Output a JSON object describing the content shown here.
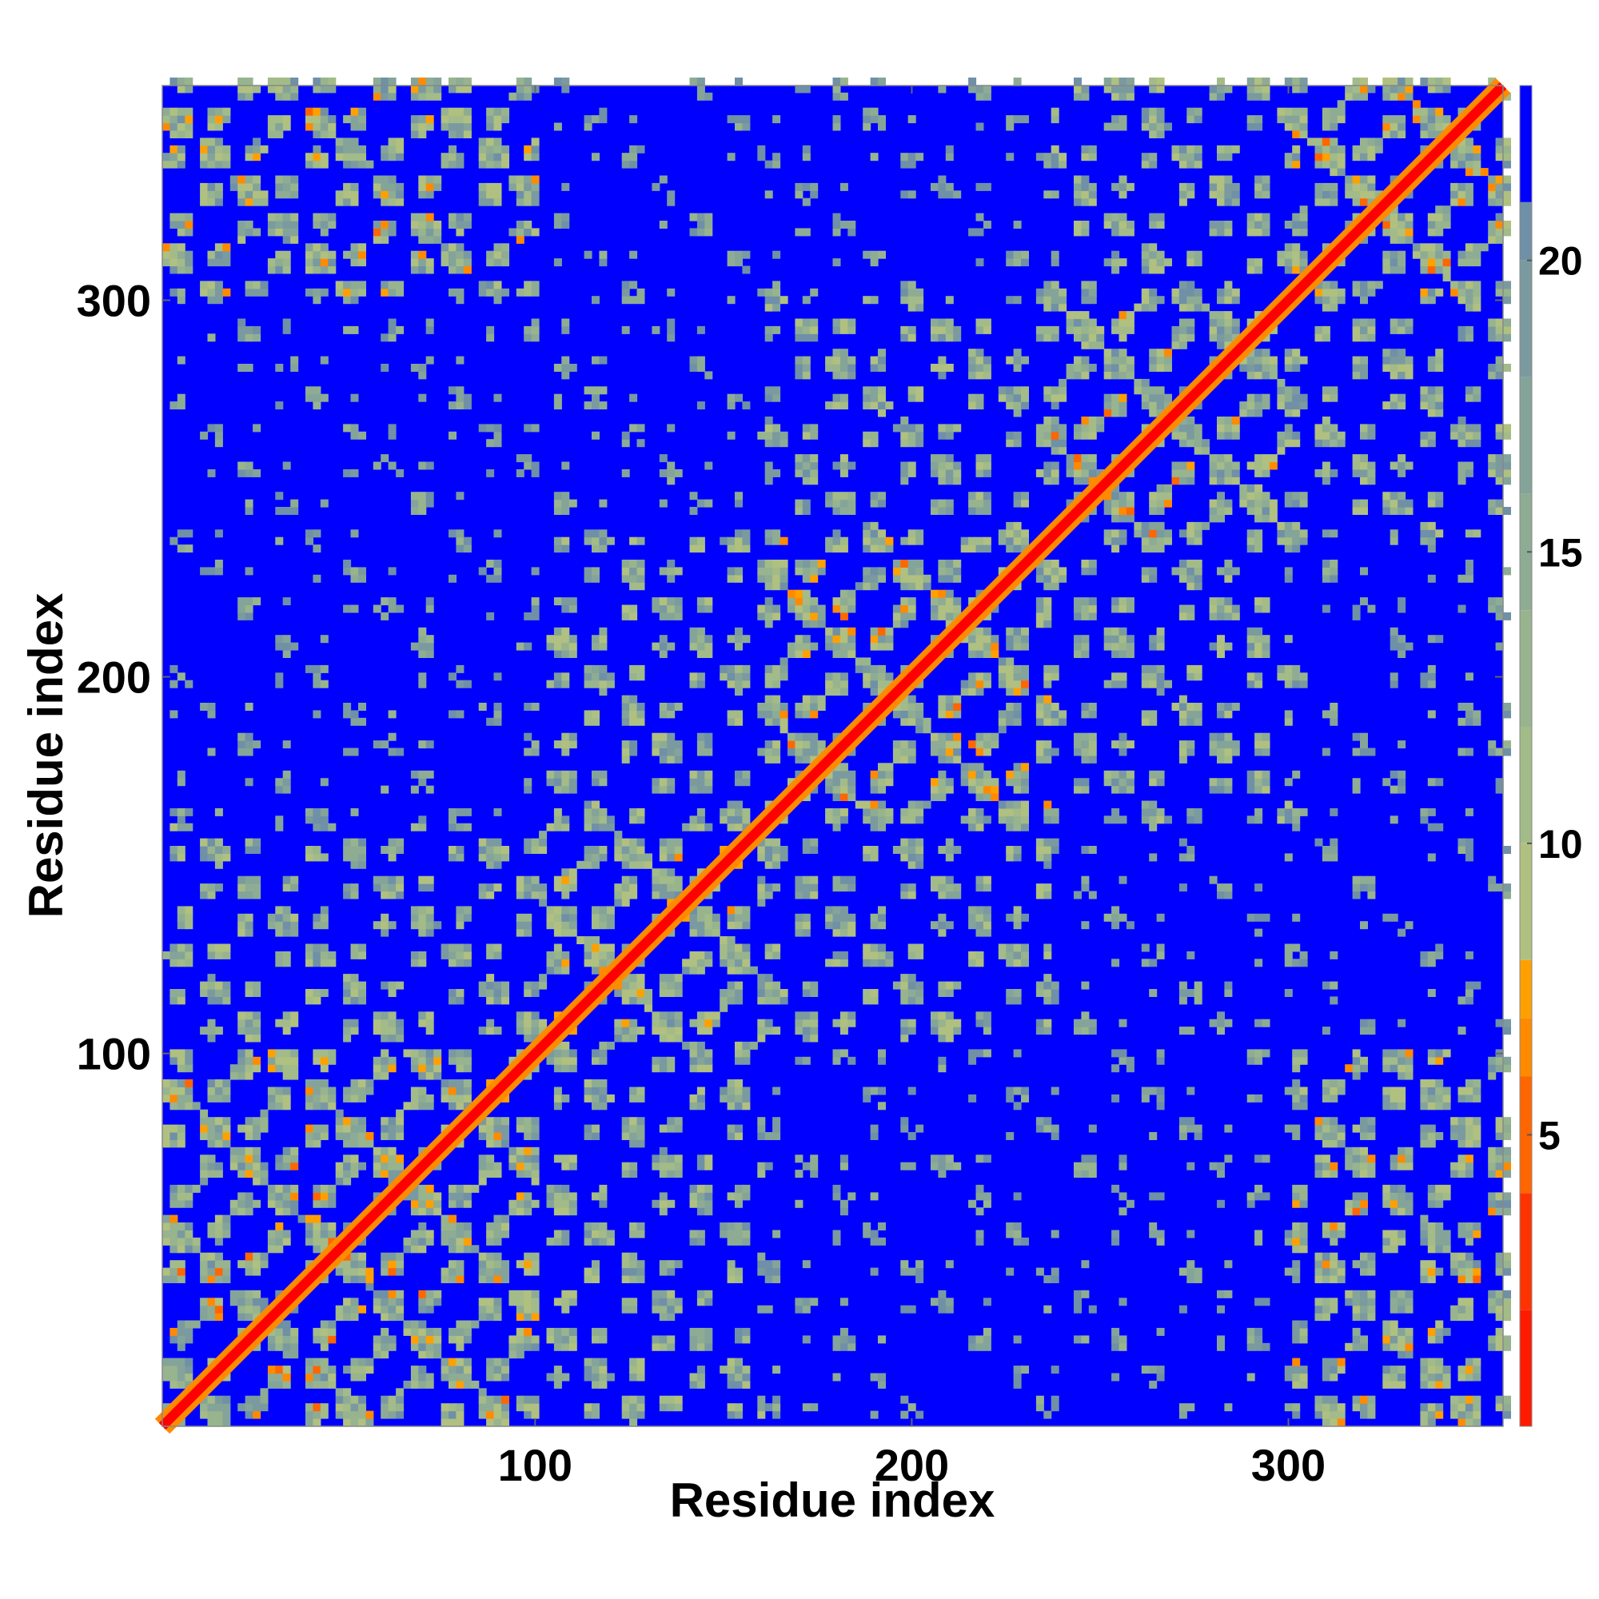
{
  "chart_data": {
    "type": "heatmap",
    "title": "",
    "xlabel": "Residue index",
    "ylabel": "Residue index",
    "n_residues": 357,
    "xlim": [
      1,
      357
    ],
    "ylim": [
      1,
      357
    ],
    "x_ticks": [
      100,
      200,
      300
    ],
    "y_ticks": [
      100,
      200,
      300
    ],
    "colorbar": {
      "range": [
        0,
        23
      ],
      "ticks": [
        5,
        10,
        15,
        20
      ],
      "bands": [
        {
          "from": 0,
          "to": 2,
          "color": "#ff1a00"
        },
        {
          "from": 2,
          "to": 4,
          "color": "#ff3300"
        },
        {
          "from": 4,
          "to": 6,
          "color": "#ff6600"
        },
        {
          "from": 6,
          "to": 7,
          "color": "#ff8a00"
        },
        {
          "from": 7,
          "to": 8,
          "color": "#ffa000"
        },
        {
          "from": 8,
          "to": 10,
          "color": "#b0c080"
        },
        {
          "from": 10,
          "to": 12,
          "color": "#a3bb88"
        },
        {
          "from": 12,
          "to": 14,
          "color": "#98b48e"
        },
        {
          "from": 14,
          "to": 16,
          "color": "#8eac94"
        },
        {
          "from": 16,
          "to": 18,
          "color": "#84a49a"
        },
        {
          "from": 18,
          "to": 20,
          "color": "#7a9aa0"
        },
        {
          "from": 20,
          "to": 21,
          "color": "#6f90a6"
        },
        {
          "from": 21,
          "to": 23,
          "color": "#0000ff"
        }
      ]
    },
    "grid": false,
    "background_color": "#0000ff",
    "diagonal_color": "#ff0000"
  }
}
